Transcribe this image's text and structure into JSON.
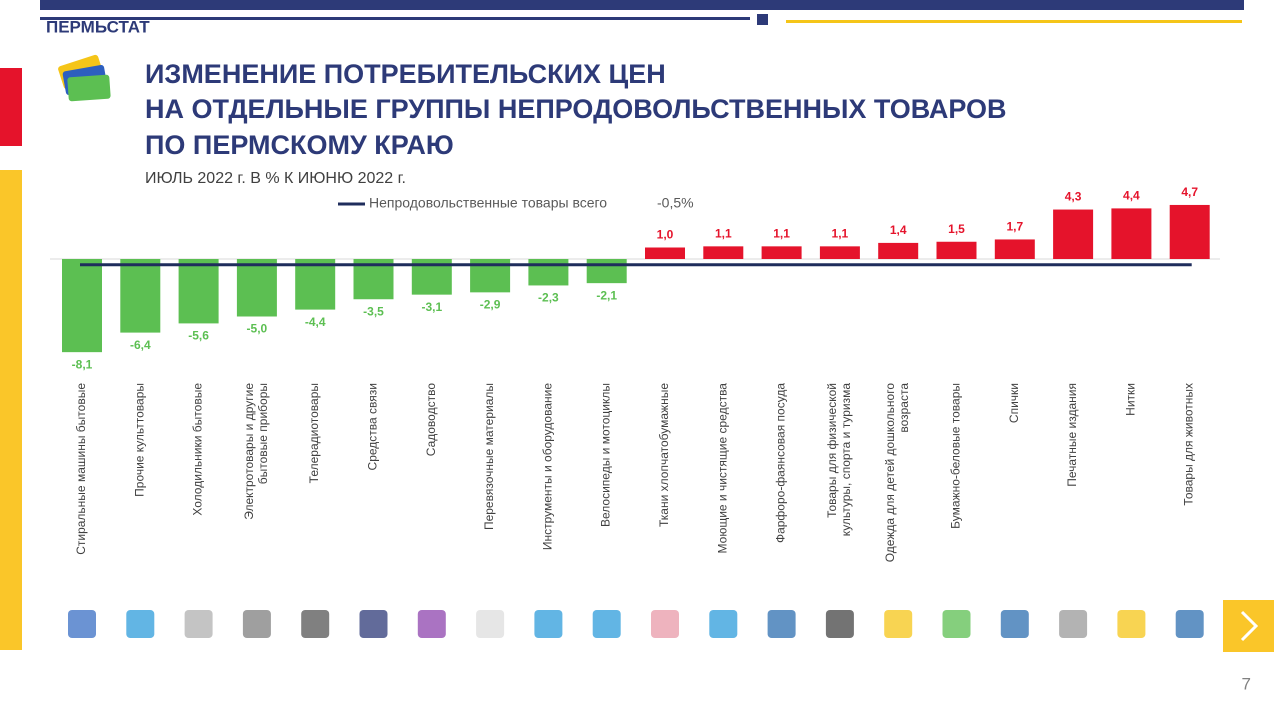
{
  "header": {
    "brand": "ПЕРМЬСТАТ",
    "page_number": "7"
  },
  "chart_data": {
    "type": "bar",
    "title": [
      "ИЗМЕНЕНИЕ ПОТРЕБИТЕЛЬСКИХ ЦЕН",
      "НА ОТДЕЛЬНЫЕ  ГРУППЫ НЕПРОДОВОЛЬСТВЕННЫХ ТОВАРОВ",
      "ПО ПЕРМСКОМУ КРАЮ"
    ],
    "subtitle": "ИЮЛЬ 2022 г. В % К ИЮНЮ 2022 г.",
    "categories": [
      "Стиральные  машины бытовые",
      "Прочие культтовары",
      "Холодильники бытовые",
      "Электротовары и другие\nбытовые приборы",
      "Телерадиотовары",
      "Средства связи",
      "Садоводство",
      "Перевязочные  материалы",
      "Инструменты  и оборудование",
      "Велосипеды и мотоциклы",
      "Ткани хлопчатобумажные",
      "Моющие и чистящие средства",
      "Фарфоро-фаянсовая  посуда",
      "Товары  для физической\nкультуры, спорта и туризма",
      "Одежда для детей дошкольного\nвозраста",
      "Бумажно-беловые товары",
      "Спички",
      "Печатные  издания",
      "Нитки",
      "Товары  для животных"
    ],
    "values": [
      -8.1,
      -6.4,
      -5.6,
      -5.0,
      -4.4,
      -3.5,
      -3.1,
      -2.9,
      -2.3,
      -2.1,
      1.0,
      1.1,
      1.1,
      1.1,
      1.4,
      1.5,
      1.7,
      4.3,
      4.4,
      4.7
    ],
    "value_labels": [
      "-8,1",
      "-6,4",
      "-5,6",
      "-5,0",
      "-4,4",
      "-3,5",
      "-3,1",
      "-2,9",
      "-2,3",
      "-2,1",
      "1,0",
      "1,1",
      "1,1",
      "1,1",
      "1,4",
      "1,5",
      "1,7",
      "4,3",
      "4,4",
      "4,7"
    ],
    "negative_color": "#5cbf52",
    "positive_color": "#e5132b",
    "reference": {
      "name": "Непродовольственные товары всего",
      "value": -0.5,
      "label": "-0,5%",
      "color": "#1f2d5c"
    }
  }
}
